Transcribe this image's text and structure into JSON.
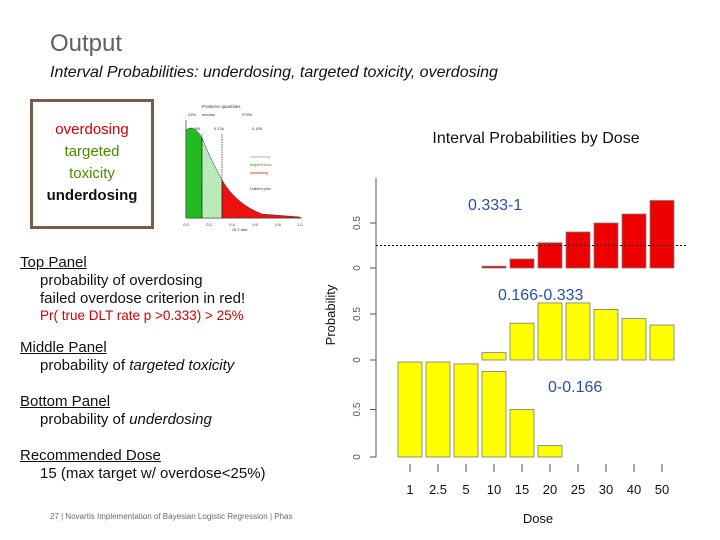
{
  "slide": {
    "title": "Output",
    "subtitle": "Interval Probabilities: underdosing, targeted toxicity, overdosing"
  },
  "legend_box": {
    "overdosing": "overdosing",
    "targeted_line1": "targeted",
    "targeted_line2": "toxicity",
    "underdosing": "underdosing"
  },
  "notes": {
    "top_title": "Top Panel",
    "top_line1": "probability of overdosing",
    "top_line2": "failed overdose criterion in red!",
    "top_pr": "Pr( true DLT rate p >0.333) > 25%",
    "middle_title": "Middle Panel",
    "middle_prefix": "probability of ",
    "middle_emph": "targeted toxicity",
    "bottom_title": "Bottom Panel",
    "bottom_prefix": "probability of ",
    "bottom_emph": "underdosing",
    "rec_title": "Recommended Dose",
    "rec_line": "15 (max target w/ overdose<25%)"
  },
  "footer": "27 | Novartis Implementation of Bayesian Logistic Regression | Phas",
  "colors": {
    "over": "#ee0000",
    "target": "#ffff00",
    "under": "#ffff00",
    "threshold": "#000000"
  },
  "chart_data": {
    "type": "bar",
    "title": "Interval Probabilities by Dose",
    "xlabel": "Dose",
    "ylabel": "Probability",
    "categories": [
      "1",
      "2.5",
      "5",
      "10",
      "15",
      "20",
      "25",
      "30",
      "40",
      "50"
    ],
    "threshold": 0.25,
    "ylim": [
      0,
      1
    ],
    "series": [
      {
        "name": "0.333-1",
        "values": [
          0.0,
          0.0,
          0.0,
          0.02,
          0.1,
          0.28,
          0.4,
          0.5,
          0.6,
          0.75
        ]
      },
      {
        "name": "0.166-0.333",
        "values": [
          0.0,
          0.0,
          0.0,
          0.08,
          0.4,
          0.62,
          0.62,
          0.55,
          0.45,
          0.38
        ]
      },
      {
        "name": "0-0.166",
        "values": [
          1.0,
          1.0,
          0.98,
          0.9,
          0.5,
          0.12,
          0.0,
          0.0,
          0.0,
          0.0
        ]
      }
    ]
  },
  "mini_plot": {
    "header": "Posterior quantities",
    "q_labels": [
      "25%",
      "median",
      "975%"
    ],
    "q_values": [
      "0.069",
      "0.134",
      "0.165"
    ],
    "legend": [
      "underdosing",
      "targeted toxic",
      "overdosing"
    ],
    "prior_label": "Uniform prior",
    "xlabel": "DLT rate",
    "ticks": [
      "0.0",
      "0.2",
      "0.4",
      "0.6",
      "0.8",
      "1.0"
    ]
  }
}
